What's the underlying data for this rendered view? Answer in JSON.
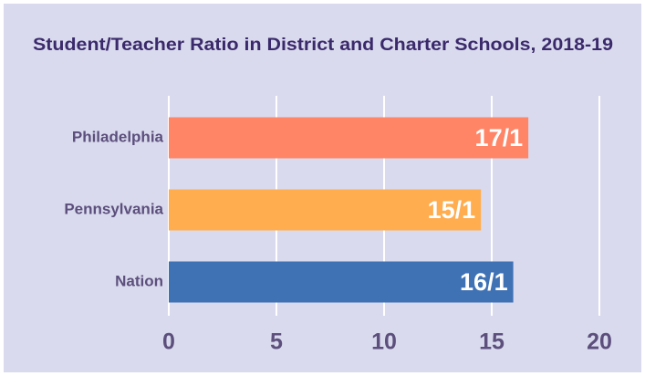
{
  "chart_data": {
    "type": "barh",
    "title": "Student/Teacher Ratio in District and Charter Schools, 2018-19",
    "categories": [
      "Philadelphia",
      "Pennsylvania",
      "Nation"
    ],
    "values": [
      16.7,
      14.5,
      16.0
    ],
    "value_labels": [
      "17/1",
      "15/1",
      "16/1"
    ],
    "colors": [
      "#ff8566",
      "#ffad4f",
      "#3f72b5"
    ],
    "xlim": [
      0,
      20
    ],
    "xticks": [
      0,
      5,
      10,
      15,
      20
    ],
    "grid": true
  }
}
